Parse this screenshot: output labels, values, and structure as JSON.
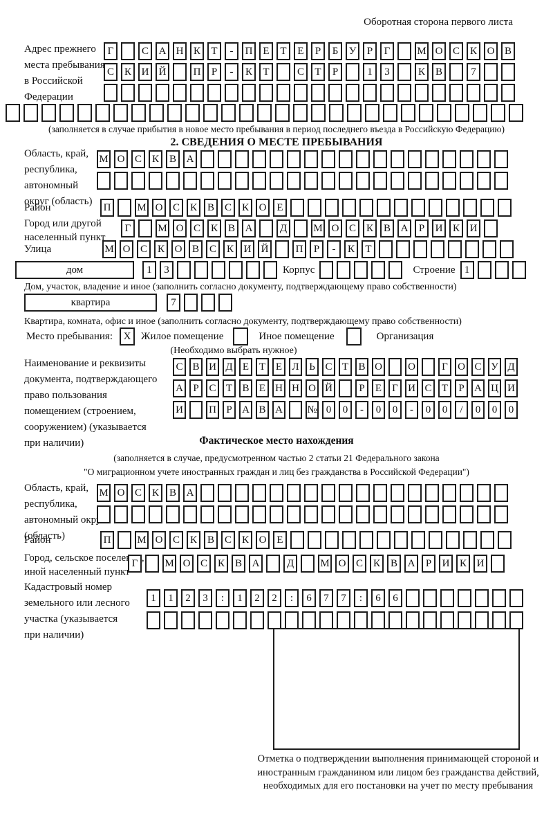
{
  "page": {
    "corner_note": "Оборотная сторона первого листа"
  },
  "prev_address": {
    "label": "Адрес прежнего\nместа пребывания\nв Российской\nФедерации",
    "rows": [
      {
        "len": 24,
        "text": "Г САНКТ-ПЕТЕРБУРГ МОСКОВ"
      },
      {
        "len": 24,
        "text": "СКИЙ ПР-КТ СТР 13 КВ 7"
      },
      {
        "len": 24,
        "text": ""
      },
      {
        "len": 29,
        "text": ""
      }
    ],
    "note": "(заполняется в случае прибытия в новое место пребывания в период последнего въезда в Российскую Федерацию)"
  },
  "section2": {
    "heading": "2. СВЕДЕНИЯ О МЕСТЕ ПРЕБЫВАНИЯ",
    "region": {
      "label": "Область, край,\nреспублика,\nавтономный\nокруг (область)",
      "rows": [
        {
          "len": 24,
          "text": "МОСКВА"
        },
        {
          "len": 24,
          "text": ""
        }
      ]
    },
    "district": {
      "label": "Район",
      "row": {
        "len": 24,
        "text": "П МОСКВСКОЕ"
      }
    },
    "city": {
      "label": "Город или другой\nнаселенный пункт",
      "row": {
        "len": 22,
        "text": "Г МОСКВА Д МОСКВАРИКИ"
      }
    },
    "street": {
      "label": "Улица",
      "row": {
        "len": 24,
        "text": "МОСКОВСКИЙ ПР-КТ"
      }
    },
    "house": {
      "type_label": "дом",
      "number": {
        "len": 8,
        "text": "13"
      },
      "korpus_label": "Корпус",
      "korpus": {
        "len": 5,
        "text": ""
      },
      "stroenie_label": "Строение",
      "stroenie": {
        "len": 4,
        "text": "1"
      },
      "note": "Дом, участок, владение и иное (заполнить согласно документу, подтверждающему право собственности)"
    },
    "apartment": {
      "type_label": "квартира",
      "number": {
        "len": 4,
        "text": "7"
      },
      "note": "Квартира, комната, офис и иное (заполнить согласно документу, подтверждающему право собственности)"
    },
    "stay_type": {
      "label": "Место пребывания:",
      "options": [
        {
          "label": "Жилое помещение",
          "mark": "X"
        },
        {
          "label": "Иное помещение",
          "mark": ""
        },
        {
          "label": "Организация",
          "mark": ""
        }
      ],
      "note": "(Необходимо выбрать нужное)"
    },
    "document": {
      "label": "Наименование и реквизиты\nдокумента, подтверждающего\nправо пользования\nпомещением (строением,\nсооружением) (указывается\nпри наличии)",
      "rows": [
        {
          "len": 21,
          "text": "СВИДЕТЕЛЬСТВО О ГОСУД"
        },
        {
          "len": 21,
          "text": "АРСТВЕННОЙ РЕГИСТРАЦИ"
        },
        {
          "len": 21,
          "text": "И ПРАВА №00-00-00/000"
        }
      ]
    }
  },
  "actual_location": {
    "heading": "Фактическое место нахождения",
    "note_line1": "(заполняется в случае, предусмотренном частью 2 статьи 21 Федерального закона",
    "note_line2": "\"О миграционном учете иностранных граждан и лиц без гражданства в Российской Федерации\")",
    "region": {
      "label": "Область, край,\nреспублика,\nавтономный округ\n(область)",
      "rows": [
        {
          "len": 24,
          "text": "МОСКВА"
        },
        {
          "len": 24,
          "text": ""
        }
      ]
    },
    "district": {
      "label": "Район",
      "row": {
        "len": 24,
        "text": "П МОСКВСКОЕ"
      }
    },
    "city": {
      "label": "Город, сельское поселение,\nиной населенный пункт",
      "row": {
        "len": 22,
        "text": "Г МОСКВА Д МОСКВАРИКИ"
      }
    },
    "cadastral": {
      "label": "Кадастровый номер\nземельного или лесного\nучастка (указывается\nпри наличии)",
      "rows": [
        {
          "len": 22,
          "text": "1123:122:677:66"
        },
        {
          "len": 22,
          "text": ""
        }
      ]
    },
    "confirmation_caption": "Отметка о подтверждении выполнения принимающей стороной и иностранным гражданином или лицом без гражданства действий, необходимых для его постановки на учет по месту пребывания"
  }
}
